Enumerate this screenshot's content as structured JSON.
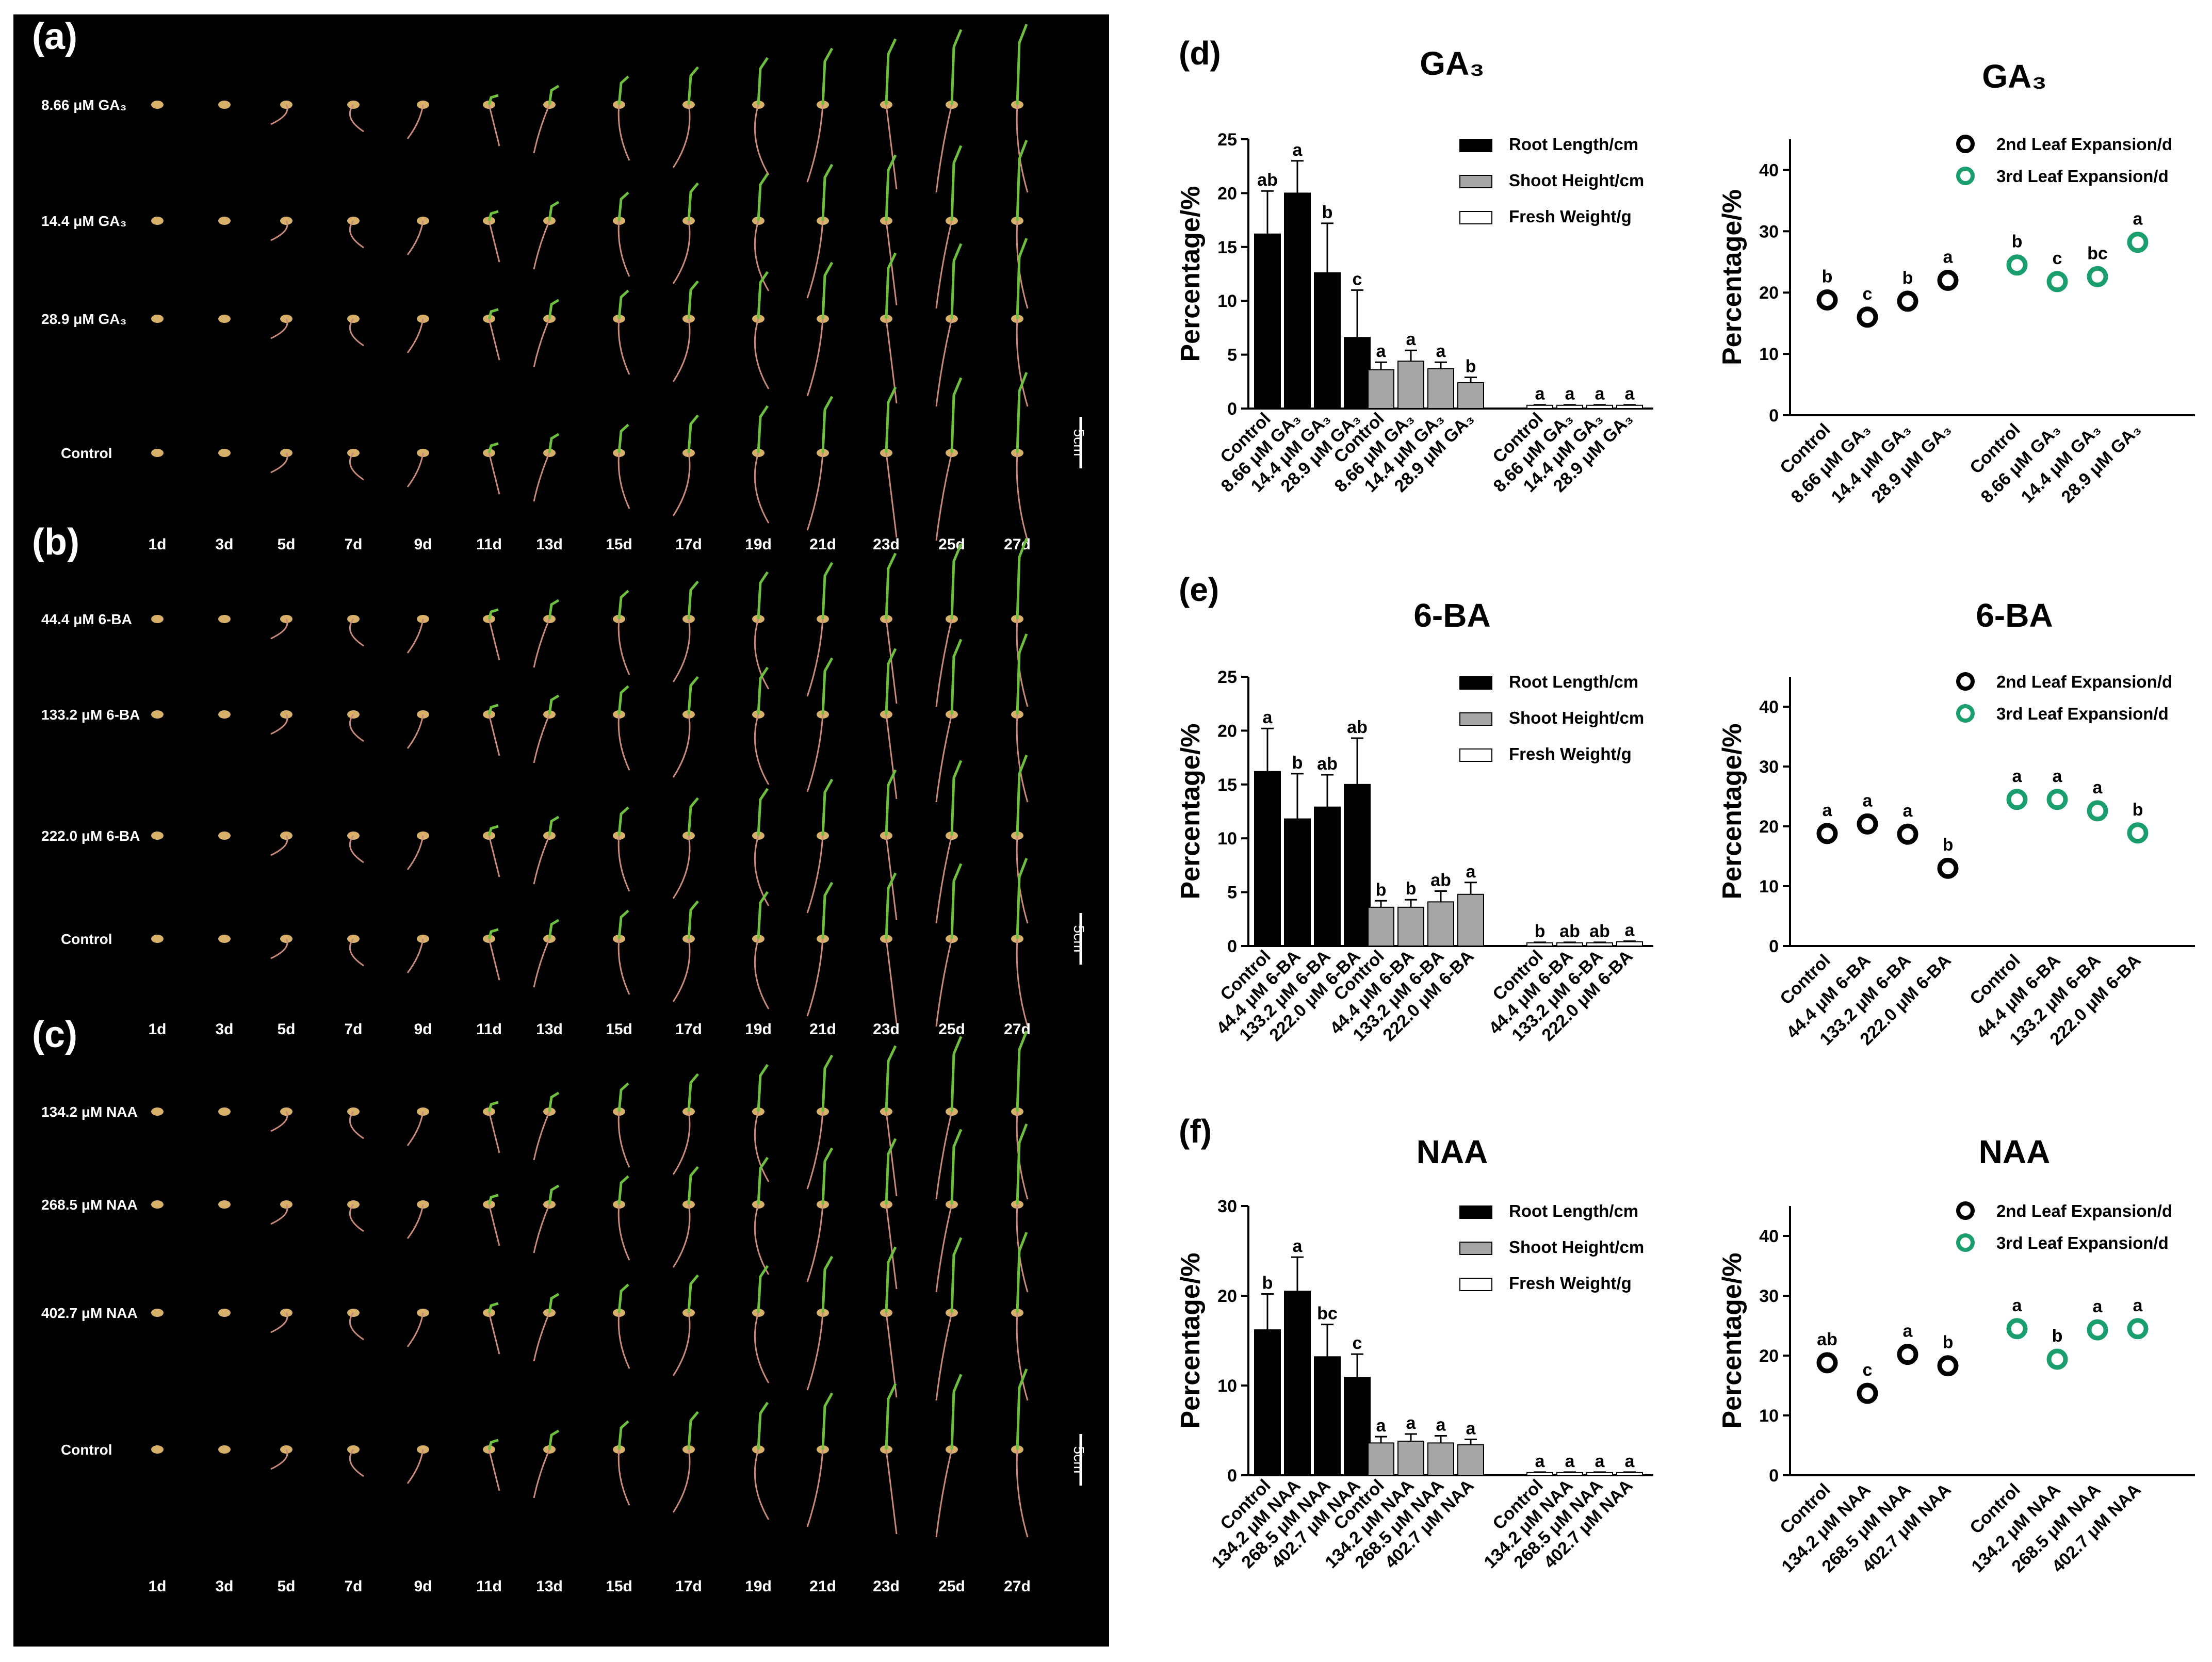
{
  "photo": {
    "panels": [
      {
        "letter": "(a)",
        "rows": [
          "8.66 μM GA₃",
          "14.4 μM GA₃",
          "28.9 μM GA₃",
          "Control"
        ],
        "days": [
          "1d",
          "3d",
          "5d",
          "7d",
          "9d",
          "11d",
          "13d",
          "15d",
          "17d",
          "19d",
          "21d",
          "23d",
          "25d",
          "27d"
        ],
        "scale": "5cm"
      },
      {
        "letter": "(b)",
        "rows": [
          "44.4 μM 6-BA",
          "133.2 μM 6-BA",
          "222.0 μM 6-BA",
          "Control"
        ],
        "days": [
          "1d",
          "3d",
          "5d",
          "7d",
          "9d",
          "11d",
          "13d",
          "15d",
          "17d",
          "19d",
          "21d",
          "23d",
          "25d",
          "27d"
        ],
        "scale": "5cm"
      },
      {
        "letter": "(c)",
        "rows": [
          "134.2 μM NAA",
          "268.5 μM NAA",
          "402.7 μM NAA",
          "Control"
        ],
        "days": [
          "1d",
          "3d",
          "5d",
          "7d",
          "9d",
          "11d",
          "13d",
          "15d",
          "17d",
          "19d",
          "21d",
          "23d",
          "25d",
          "27d"
        ],
        "scale": "5cm"
      }
    ],
    "colors": {
      "root": "#c98a7a",
      "shoot": "#6fbf3f",
      "seed": "#d7b06a"
    }
  },
  "chart_data": [
    {
      "letter": "(d)",
      "type": "bar",
      "title": "GA₃",
      "ylabel": "Percentage/%",
      "ylim": [
        0,
        25
      ],
      "yticks": [
        0,
        5,
        10,
        15,
        20,
        25
      ],
      "groups": [
        {
          "series": "Root Length/cm",
          "color": "#000000",
          "categories": [
            "Control",
            "8.66 μM GA₃",
            "14.4 μM GA₃",
            "28.9 μM GA₃"
          ],
          "values": [
            16.2,
            20.0,
            12.6,
            6.6
          ],
          "errors": [
            4.0,
            3.0,
            4.6,
            4.4
          ],
          "letters": [
            "ab",
            "a",
            "b",
            "c"
          ]
        },
        {
          "series": "Shoot Height/cm",
          "color": "#a6a6a6",
          "categories": [
            "Control",
            "8.66 μM GA₃",
            "14.4 μM GA₃",
            "28.9 μM GA₃"
          ],
          "values": [
            3.6,
            4.4,
            3.7,
            2.4
          ],
          "errors": [
            0.7,
            1.0,
            0.6,
            0.5
          ],
          "letters": [
            "a",
            "a",
            "a",
            "b"
          ]
        },
        {
          "series": "Fresh Weight/g",
          "color": "#ffffff",
          "categories": [
            "Control",
            "8.66 μM GA₃",
            "14.4 μM GA₃",
            "28.9 μM GA₃"
          ],
          "values": [
            0.3,
            0.3,
            0.3,
            0.3
          ],
          "errors": [
            0.05,
            0.05,
            0.05,
            0.05
          ],
          "letters": [
            "a",
            "a",
            "a",
            "a"
          ]
        }
      ],
      "legend": [
        "Root Length/cm",
        "Shoot Height/cm",
        "Fresh Weight/g"
      ],
      "legend_position": "top-right"
    },
    {
      "letter": "",
      "type": "scatter",
      "title": "GA₃",
      "ylabel": "Percentage/%",
      "ylim": [
        0,
        45
      ],
      "yticks": [
        0,
        10,
        20,
        30,
        40
      ],
      "groups": [
        {
          "series": "2nd Leaf Expansion/d",
          "color": "#000000",
          "categories": [
            "Control",
            "8.66 μM GA₃",
            "14.4 μM GA₃",
            "28.9 μM GA₃"
          ],
          "values": [
            18.8,
            16.0,
            18.6,
            22.0
          ],
          "letters": [
            "b",
            "c",
            "b",
            "a"
          ]
        },
        {
          "series": "3rd Leaf Expansion/d",
          "color": "#1a9e6e",
          "categories": [
            "Control",
            "8.66 μM GA₃",
            "14.4 μM GA₃",
            "28.9 μM GA₃"
          ],
          "values": [
            24.5,
            21.8,
            22.6,
            28.2
          ],
          "letters": [
            "b",
            "c",
            "bc",
            "a"
          ]
        }
      ],
      "legend": [
        "2nd Leaf Expansion/d",
        "3rd Leaf Expansion/d"
      ],
      "legend_position": "top-right"
    },
    {
      "letter": "(e)",
      "type": "bar",
      "title": "6-BA",
      "ylabel": "Percentage/%",
      "ylim": [
        0,
        25
      ],
      "yticks": [
        0,
        5,
        10,
        15,
        20,
        25
      ],
      "groups": [
        {
          "series": "Root Length/cm",
          "color": "#000000",
          "categories": [
            "Control",
            "44.4 μM 6-BA",
            "133.2 μM 6-BA",
            "222.0 μM 6-BA"
          ],
          "values": [
            16.2,
            11.8,
            12.9,
            15.0
          ],
          "errors": [
            4.0,
            4.2,
            3.0,
            4.3
          ],
          "letters": [
            "a",
            "b",
            "ab",
            "ab"
          ]
        },
        {
          "series": "Shoot Height/cm",
          "color": "#a6a6a6",
          "categories": [
            "Control",
            "44.4 μM 6-BA",
            "133.2 μM 6-BA",
            "222.0 μM 6-BA"
          ],
          "values": [
            3.6,
            3.6,
            4.1,
            4.8
          ],
          "errors": [
            0.6,
            0.7,
            1.0,
            1.1
          ],
          "letters": [
            "b",
            "b",
            "ab",
            "a"
          ]
        },
        {
          "series": "Fresh Weight/g",
          "color": "#ffffff",
          "categories": [
            "Control",
            "44.4 μM 6-BA",
            "133.2 μM 6-BA",
            "222.0 μM 6-BA"
          ],
          "values": [
            0.3,
            0.3,
            0.3,
            0.4
          ],
          "errors": [
            0.05,
            0.05,
            0.05,
            0.05
          ],
          "letters": [
            "b",
            "ab",
            "ab",
            "a"
          ]
        }
      ],
      "legend": [
        "Root Length/cm",
        "Shoot Height/cm",
        "Fresh Weight/g"
      ],
      "legend_position": "top-right"
    },
    {
      "letter": "",
      "type": "scatter",
      "title": "6-BA",
      "ylabel": "Percentage/%",
      "ylim": [
        0,
        45
      ],
      "yticks": [
        0,
        10,
        20,
        30,
        40
      ],
      "groups": [
        {
          "series": "2nd Leaf Expansion/d",
          "color": "#000000",
          "categories": [
            "Control",
            "44.4 μM 6-BA",
            "133.2 μM 6-BA",
            "222.0 μM 6-BA"
          ],
          "values": [
            18.8,
            20.4,
            18.7,
            13.0
          ],
          "letters": [
            "a",
            "a",
            "a",
            "b"
          ]
        },
        {
          "series": "3rd Leaf Expansion/d",
          "color": "#1a9e6e",
          "categories": [
            "Control",
            "44.4 μM 6-BA",
            "133.2 μM 6-BA",
            "222.0 μM 6-BA"
          ],
          "values": [
            24.5,
            24.5,
            22.6,
            18.9
          ],
          "letters": [
            "a",
            "a",
            "a",
            "b"
          ]
        }
      ],
      "legend": [
        "2nd Leaf Expansion/d",
        "3rd Leaf Expansion/d"
      ],
      "legend_position": "top-right"
    },
    {
      "letter": "(f)",
      "type": "bar",
      "title": "NAA",
      "ylabel": "Percentage/%",
      "ylim": [
        0,
        30
      ],
      "yticks": [
        0,
        10,
        20,
        30
      ],
      "groups": [
        {
          "series": "Root Length/cm",
          "color": "#000000",
          "categories": [
            "Control",
            "134.2 μM NAA",
            "268.5 μM NAA",
            "402.7 μM NAA"
          ],
          "values": [
            16.2,
            20.5,
            13.2,
            10.9
          ],
          "errors": [
            4.0,
            3.8,
            3.6,
            2.6
          ],
          "letters": [
            "b",
            "a",
            "bc",
            "c"
          ]
        },
        {
          "series": "Shoot Height/cm",
          "color": "#a6a6a6",
          "categories": [
            "Control",
            "134.2 μM NAA",
            "268.5 μM NAA",
            "402.7 μM NAA"
          ],
          "values": [
            3.6,
            3.8,
            3.6,
            3.4
          ],
          "errors": [
            0.7,
            0.8,
            0.8,
            0.6
          ],
          "letters": [
            "a",
            "a",
            "a",
            "a"
          ]
        },
        {
          "series": "Fresh Weight/g",
          "color": "#ffffff",
          "categories": [
            "Control",
            "134.2 μM NAA",
            "268.5 μM NAA",
            "402.7 μM NAA"
          ],
          "values": [
            0.3,
            0.3,
            0.3,
            0.3
          ],
          "errors": [
            0.05,
            0.05,
            0.05,
            0.05
          ],
          "letters": [
            "a",
            "a",
            "a",
            "a"
          ]
        }
      ],
      "legend": [
        "Root Length/cm",
        "Shoot Height/cm",
        "Fresh Weight/g"
      ],
      "legend_position": "top-right"
    },
    {
      "letter": "",
      "type": "scatter",
      "title": "NAA",
      "ylabel": "Percentage/%",
      "ylim": [
        0,
        45
      ],
      "yticks": [
        0,
        10,
        20,
        30,
        40
      ],
      "groups": [
        {
          "series": "2nd Leaf Expansion/d",
          "color": "#000000",
          "categories": [
            "Control",
            "134.2 μM NAA",
            "268.5 μM NAA",
            "402.7 μM NAA"
          ],
          "values": [
            18.8,
            13.7,
            20.2,
            18.3
          ],
          "letters": [
            "ab",
            "c",
            "a",
            "b"
          ]
        },
        {
          "series": "3rd Leaf Expansion/d",
          "color": "#1a9e6e",
          "categories": [
            "Control",
            "134.2 μM NAA",
            "268.5 μM NAA",
            "402.7 μM NAA"
          ],
          "values": [
            24.5,
            19.4,
            24.3,
            24.5
          ],
          "letters": [
            "a",
            "b",
            "a",
            "a"
          ]
        }
      ],
      "legend": [
        "2nd Leaf Expansion/d",
        "3rd Leaf Expansion/d"
      ],
      "legend_position": "top-right"
    }
  ]
}
